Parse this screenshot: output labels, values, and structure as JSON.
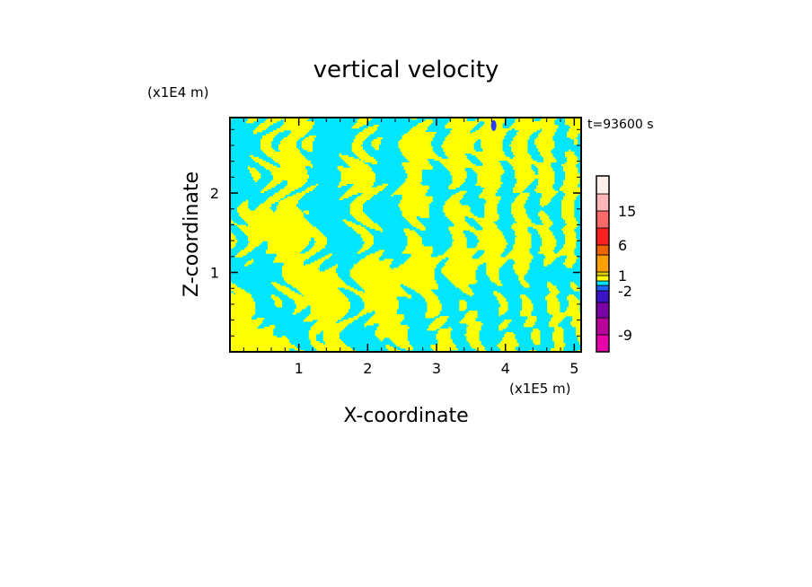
{
  "chart_data": {
    "type": "heatmap",
    "title": "vertical velocity",
    "xlabel": "X-coordinate",
    "ylabel": "Z-coordinate",
    "x_unit": "(x1E5 m)",
    "y_unit": "(x1E4 m)",
    "time_label": "t=93600 s",
    "xlim": [
      0,
      5.1
    ],
    "ylim": [
      0,
      2.95
    ],
    "x_ticks": [
      1,
      2,
      3,
      4,
      5
    ],
    "y_ticks": [
      1,
      2
    ],
    "x_tick_labels": [
      "1",
      "2",
      "3",
      "4",
      "5"
    ],
    "y_tick_labels": [
      "1",
      "2"
    ],
    "colorbar": {
      "levels": [
        -12,
        -9,
        -6,
        -4,
        -2,
        -1,
        0,
        1,
        2,
        4,
        6,
        10,
        15,
        20
      ],
      "colors": [
        "#e800a8",
        "#b8009a",
        "#7a00a8",
        "#3c14c8",
        "#1e64ff",
        "#00e6ff",
        "#ffff00",
        "#e0d000",
        "#ffa000",
        "#f06400",
        "#ff2020",
        "#ff6a6a",
        "#ffb6b6",
        "#fff0ec"
      ],
      "tick_labels": [
        "15",
        "6",
        "1",
        "-2",
        "-9"
      ],
      "tick_values": [
        15,
        6,
        1,
        -2,
        -9
      ]
    },
    "field_colors": {
      "positive": "#ffff00",
      "negative": "#00e6ff",
      "strong_negative": "#2a3cff"
    }
  }
}
